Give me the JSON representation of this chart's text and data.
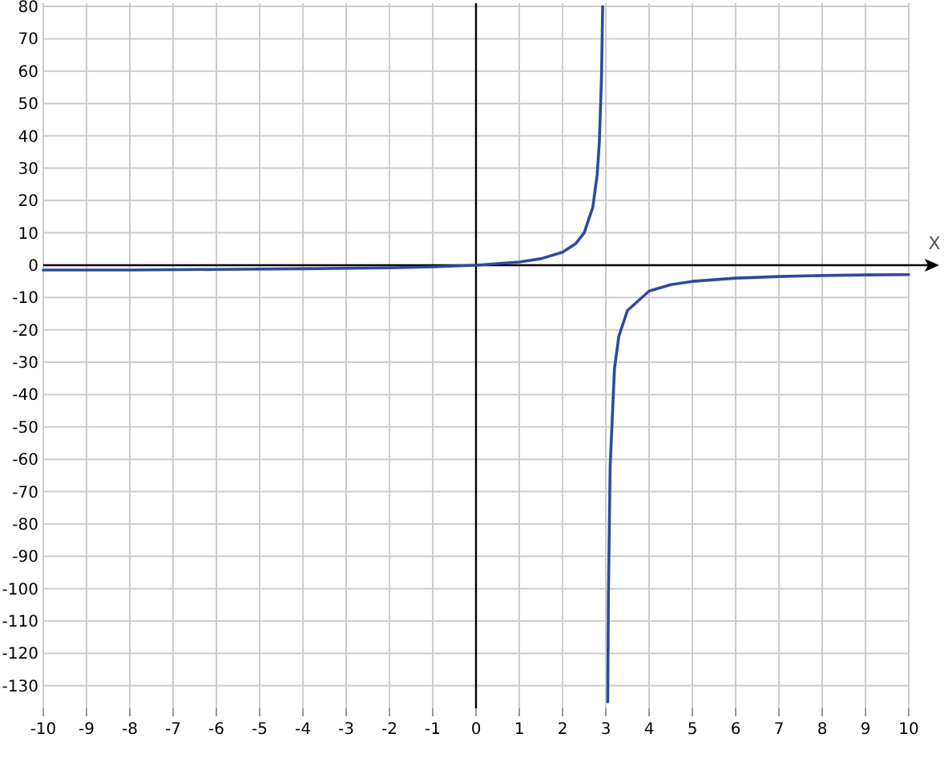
{
  "chart_data": {
    "type": "line",
    "xlabel": "X",
    "xlim": [
      -10,
      10
    ],
    "ylim": [
      -137,
      81
    ],
    "xticks": [
      -10,
      -9,
      -8,
      -7,
      -6,
      -5,
      -4,
      -3,
      -2,
      -1,
      0,
      1,
      2,
      3,
      4,
      5,
      6,
      7,
      8,
      9,
      10
    ],
    "yticks": [
      -130,
      -120,
      -110,
      -100,
      -90,
      -80,
      -70,
      -60,
      -50,
      -40,
      -30,
      -20,
      -10,
      0,
      10,
      20,
      30,
      40,
      50,
      60,
      70,
      80
    ],
    "grid": true,
    "marker": "none",
    "line_style": "solid",
    "series": [
      {
        "color": "#2e4a9e",
        "x": [
          -10,
          -8,
          -6,
          -4,
          -2,
          -1,
          0,
          1,
          1.5,
          2,
          2.3,
          2.5,
          2.7,
          2.8,
          2.85,
          2.9,
          2.927,
          3,
          3.045,
          3.06,
          3.1,
          3.2,
          3.3,
          3.5,
          4,
          4.5,
          5,
          6,
          7,
          8,
          9,
          10
        ],
        "values": [
          -1.5,
          -1.5,
          -1.3,
          -1.1,
          -0.8,
          -0.5,
          0,
          1,
          2,
          4,
          6.6,
          10,
          18,
          28,
          38,
          58,
          80,
          null,
          -135,
          -102,
          -62,
          -32,
          -22,
          -14,
          -8,
          -6,
          -5,
          -4,
          -3.5,
          -3.2,
          -3,
          -2.9
        ]
      }
    ]
  }
}
